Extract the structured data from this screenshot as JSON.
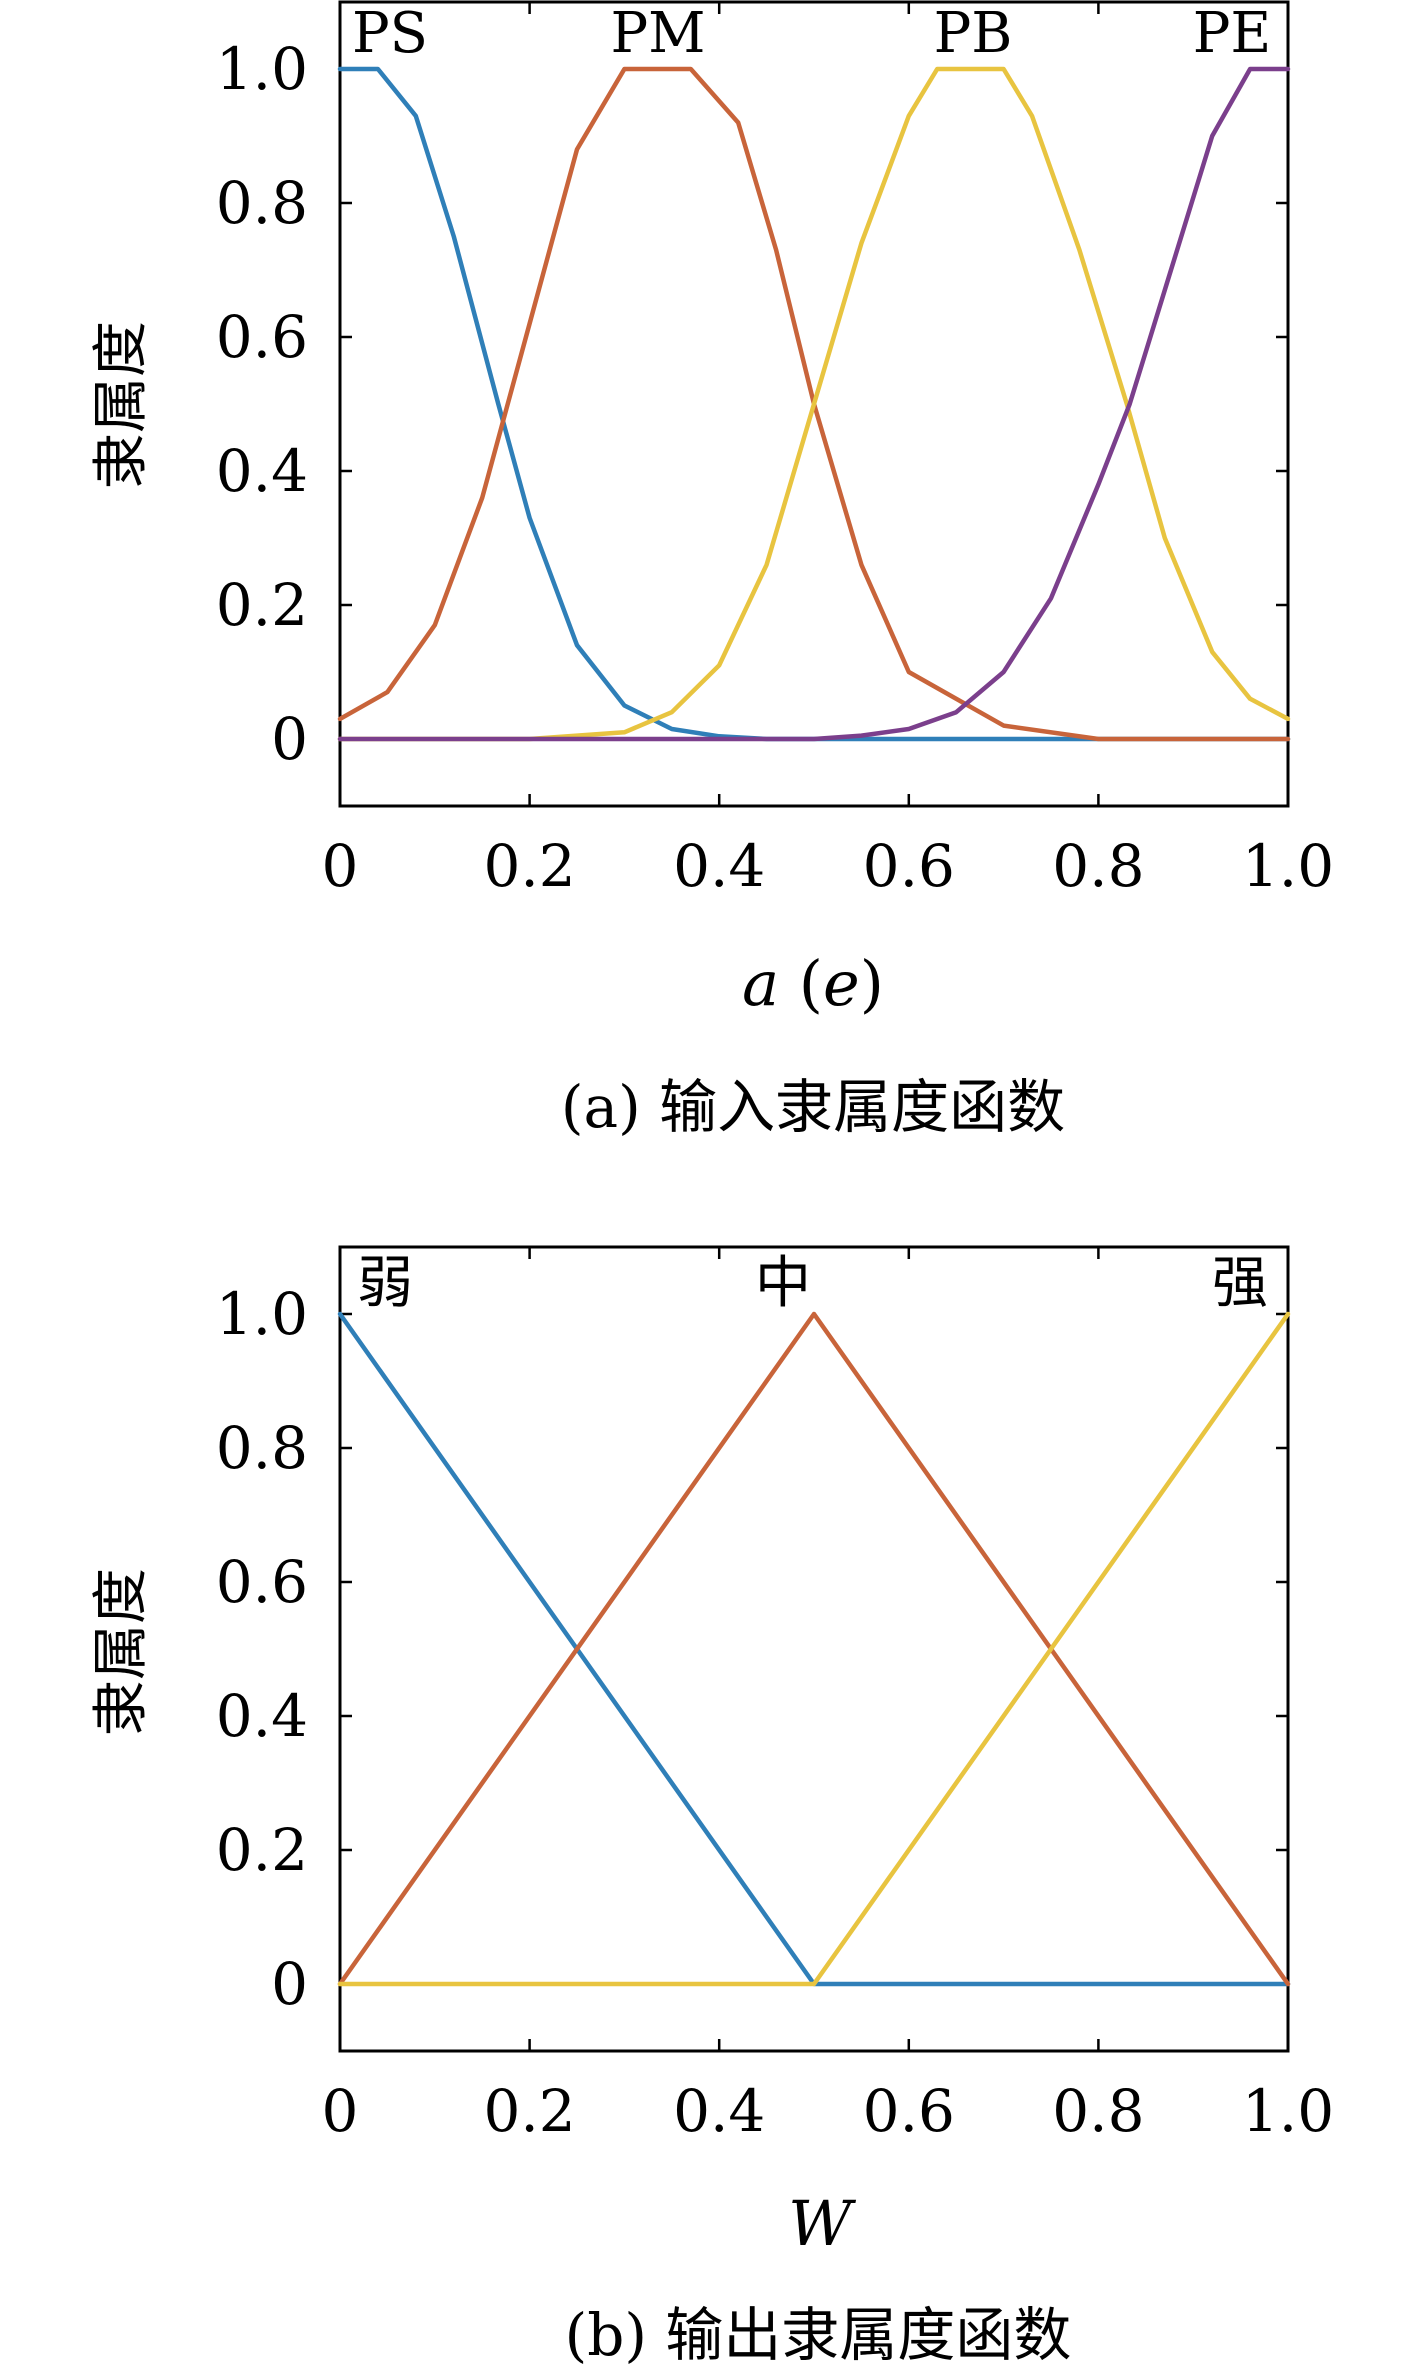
{
  "chart_data": [
    {
      "type": "line",
      "caption": "(a) 输入隶属度函数",
      "xlabel": "a (e)",
      "xlabel_parts": {
        "var1": "a",
        "var2": "e"
      },
      "ylabel": "隶属度",
      "xlim": [
        0,
        1
      ],
      "ylim": [
        -0.1,
        1.1
      ],
      "xticks": [
        0,
        0.2,
        0.4,
        0.6,
        0.8,
        1.0
      ],
      "xtick_labels": [
        "0",
        "0.2",
        "0.4",
        "0.6",
        "0.8",
        "1.0"
      ],
      "yticks": [
        0,
        0.2,
        0.4,
        0.6,
        0.8,
        1.0
      ],
      "ytick_labels": [
        "0",
        "0.2",
        "0.4",
        "0.6",
        "0.8",
        "1.0"
      ],
      "grid": false,
      "series": [
        {
          "name": "PS",
          "color": "#2f7fb8",
          "x": [
            0,
            0.04,
            0.08,
            0.12,
            0.167,
            0.2,
            0.25,
            0.3,
            0.35,
            0.4,
            0.45,
            1.0
          ],
          "y": [
            1.0,
            1.0,
            0.93,
            0.75,
            0.5,
            0.33,
            0.14,
            0.05,
            0.015,
            0.004,
            0,
            0
          ]
        },
        {
          "name": "PM",
          "color": "#c8643a",
          "x": [
            0,
            0.05,
            0.1,
            0.15,
            0.2,
            0.25,
            0.3,
            0.37,
            0.42,
            0.46,
            0.5,
            0.55,
            0.6,
            0.7,
            0.8,
            0.9,
            1.0
          ],
          "y": [
            0.03,
            0.07,
            0.17,
            0.36,
            0.62,
            0.88,
            1.0,
            1.0,
            0.92,
            0.73,
            0.5,
            0.26,
            0.1,
            0.02,
            0,
            0,
            0
          ]
        },
        {
          "name": "PB",
          "color": "#e8c440",
          "x": [
            0,
            0.2,
            0.3,
            0.35,
            0.4,
            0.45,
            0.5,
            0.55,
            0.6,
            0.63,
            0.7,
            0.73,
            0.78,
            0.83,
            0.87,
            0.92,
            0.96,
            1.0
          ],
          "y": [
            0,
            0,
            0.01,
            0.04,
            0.11,
            0.26,
            0.5,
            0.74,
            0.93,
            1.0,
            1.0,
            0.93,
            0.73,
            0.5,
            0.3,
            0.13,
            0.06,
            0.03
          ]
        },
        {
          "name": "PE",
          "color": "#7b3f8c",
          "x": [
            0,
            0.5,
            0.55,
            0.6,
            0.65,
            0.7,
            0.75,
            0.8,
            0.833,
            0.87,
            0.92,
            0.96,
            1.0
          ],
          "y": [
            0,
            0,
            0.005,
            0.015,
            0.04,
            0.1,
            0.21,
            0.38,
            0.5,
            0.67,
            0.9,
            1.0,
            1.0
          ]
        }
      ]
    },
    {
      "type": "line",
      "caption": "(b) 输出隶属度函数",
      "xlabel": "W",
      "ylabel": "隶属度",
      "xlim": [
        0,
        1
      ],
      "ylim": [
        -0.1,
        1.1
      ],
      "xticks": [
        0,
        0.2,
        0.4,
        0.6,
        0.8,
        1.0
      ],
      "xtick_labels": [
        "0",
        "0.2",
        "0.4",
        "0.6",
        "0.8",
        "1.0"
      ],
      "yticks": [
        0,
        0.2,
        0.4,
        0.6,
        0.8,
        1.0
      ],
      "ytick_labels": [
        "0",
        "0.2",
        "0.4",
        "0.6",
        "0.8",
        "1.0"
      ],
      "grid": false,
      "series": [
        {
          "name": "弱",
          "color": "#2f7fb8",
          "x": [
            0,
            0.5,
            1.0
          ],
          "y": [
            1,
            0,
            0
          ]
        },
        {
          "name": "中",
          "color": "#c8643a",
          "x": [
            0,
            0.5,
            1.0
          ],
          "y": [
            0,
            1,
            0
          ]
        },
        {
          "name": "强",
          "color": "#e8c440",
          "x": [
            0,
            0.5,
            1.0
          ],
          "y": [
            0,
            0,
            1
          ]
        }
      ]
    }
  ]
}
